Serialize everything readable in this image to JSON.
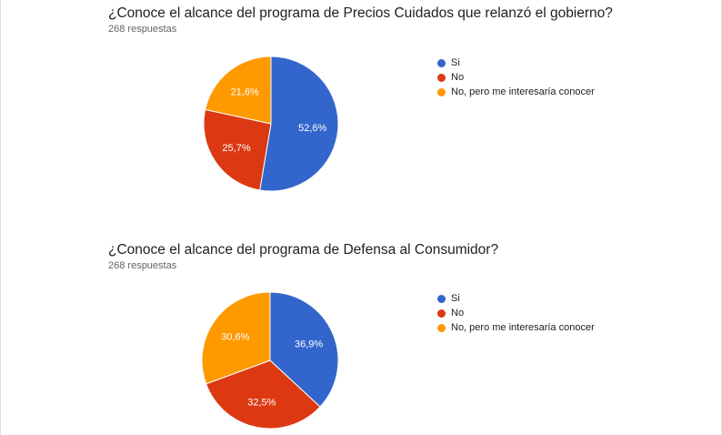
{
  "chart_data": [
    {
      "type": "pie",
      "title": "¿Conoce el alcance del programa de Precios Cuidados que relanzó el gobierno?",
      "subtitle": "268 respuestas",
      "legend_position": "right",
      "series": [
        {
          "name": "Si",
          "value": 52.6,
          "label": "52,6%",
          "color": "#3366cc"
        },
        {
          "name": "No",
          "value": 25.7,
          "label": "25,7%",
          "color": "#dc3912"
        },
        {
          "name": "No, pero me interesaría conocer",
          "value": 21.6,
          "label": "21,6%",
          "color": "#ff9900"
        }
      ]
    },
    {
      "type": "pie",
      "title": "¿Conoce el alcance del programa de Defensa al Consumidor?",
      "subtitle": "268 respuestas",
      "legend_position": "right",
      "series": [
        {
          "name": "Si",
          "value": 36.9,
          "label": "36,9%",
          "color": "#3366cc"
        },
        {
          "name": "No",
          "value": 32.5,
          "label": "32,5%",
          "color": "#dc3912"
        },
        {
          "name": "No, pero me interesaría conocer",
          "value": 30.6,
          "label": "30,6%",
          "color": "#ff9900"
        }
      ]
    }
  ]
}
